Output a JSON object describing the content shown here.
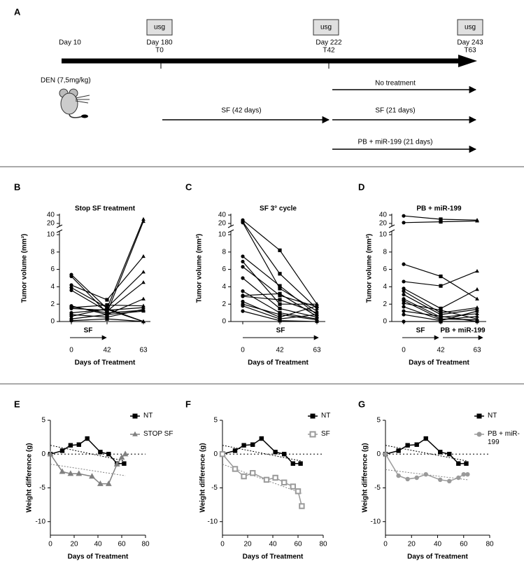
{
  "diagram": {
    "panel": "A",
    "imaging": [
      "usg",
      "usg",
      "usg"
    ],
    "timeline": [
      {
        "day": "Day 10"
      },
      {
        "day": "Day 180",
        "time": "T0"
      },
      {
        "day": "Day 222",
        "time": "T42"
      },
      {
        "day": "Day 243",
        "time": "T63"
      }
    ],
    "induction": "DEN (7,5mg/kg)",
    "arms": [
      "SF (42 days)",
      "No treatment",
      "SF (21 days)",
      "PB + miR-199 (21 days)"
    ]
  },
  "chart_data": [
    {
      "panel": "B",
      "type": "line",
      "title": "Stop SF treatment",
      "xlabel": "Days of Treatment",
      "ylabel": "Tumor volume (mm³)",
      "categories": [
        "0",
        "42",
        "63"
      ],
      "ylim": [
        0,
        40
      ],
      "yticks": [
        0,
        2,
        4,
        6,
        8,
        10,
        20,
        40
      ],
      "axis_break": [
        10,
        20
      ],
      "color": "#000000",
      "markers": [
        "circle",
        "square",
        "triangle"
      ],
      "annotations": [
        "SF"
      ],
      "series": [
        {
          "values": [
            5.4,
            1.5,
            30
          ]
        },
        {
          "values": [
            5.2,
            1.0,
            25
          ]
        },
        {
          "values": [
            4.2,
            2.5,
            7.5
          ]
        },
        {
          "values": [
            3.9,
            1.6,
            5.7
          ]
        },
        {
          "values": [
            3.6,
            1.2,
            4.5
          ]
        },
        {
          "values": [
            1.8,
            0.8,
            2.6
          ]
        },
        {
          "values": [
            1.6,
            1.9,
            1.8
          ]
        },
        {
          "values": [
            1.5,
            1.3,
            1.6
          ]
        },
        {
          "values": [
            0.8,
            0.5,
            1.4
          ]
        },
        {
          "values": [
            0.6,
            1.5,
            0
          ]
        },
        {
          "values": [
            0.3,
            0.8,
            1.2
          ]
        },
        {
          "values": [
            1.0,
            1.4,
            0
          ]
        },
        {
          "values": [
            1.7,
            1.0,
            1.3
          ]
        },
        {
          "values": [
            0.1,
            0.3,
            0
          ]
        }
      ]
    },
    {
      "panel": "C",
      "type": "line",
      "title": "SF 3° cycle",
      "xlabel": "Days of Treatment",
      "ylabel": "Tumor volume (mm³)",
      "categories": [
        "0",
        "42",
        "63"
      ],
      "ylim": [
        0,
        40
      ],
      "yticks": [
        0,
        2,
        4,
        6,
        8,
        10,
        20,
        40
      ],
      "axis_break": [
        10,
        20
      ],
      "color": "#000000",
      "markers": [
        "circle",
        "square",
        "triangle"
      ],
      "annotations": [
        "SF"
      ],
      "series": [
        {
          "values": [
            28,
            8.2,
            2.0
          ]
        },
        {
          "values": [
            24,
            5.5,
            1.5
          ]
        },
        {
          "values": [
            22,
            3.8,
            1.2
          ]
        },
        {
          "values": [
            7.5,
            4.1,
            0.8
          ]
        },
        {
          "values": [
            6.9,
            2.0,
            2.0
          ]
        },
        {
          "values": [
            6.3,
            3.0,
            1.7
          ]
        },
        {
          "values": [
            5.0,
            1.5,
            0.5
          ]
        },
        {
          "values": [
            3.5,
            1.0,
            0.3
          ]
        },
        {
          "values": [
            2.9,
            2.5,
            1.0
          ]
        },
        {
          "values": [
            2.3,
            0.5,
            1.8
          ]
        },
        {
          "values": [
            2.0,
            0.8,
            0.2
          ]
        },
        {
          "values": [
            1.8,
            0.3,
            0.8
          ]
        },
        {
          "values": [
            1.2,
            0.1,
            0
          ]
        },
        {
          "values": [
            3.0,
            3.2,
            0.6
          ]
        }
      ]
    },
    {
      "panel": "D",
      "type": "line",
      "title": "PB + miR-199",
      "xlabel": "Days of Treatment",
      "ylabel": "Tumor volume (mm³)",
      "categories": [
        "0",
        "42",
        "63"
      ],
      "ylim": [
        0,
        40
      ],
      "yticks": [
        0,
        2,
        4,
        6,
        8,
        10,
        20,
        40
      ],
      "axis_break": [
        10,
        20
      ],
      "color": "#000000",
      "markers": [
        "circle",
        "square",
        "triangle"
      ],
      "annotations": [
        "SF",
        "PB + miR-199"
      ],
      "series": [
        {
          "values": [
            38,
            30,
            28
          ]
        },
        {
          "values": [
            22,
            24,
            26
          ]
        },
        {
          "values": [
            6.6,
            5.2,
            2.6
          ]
        },
        {
          "values": [
            4.6,
            4.1,
            5.8
          ]
        },
        {
          "values": [
            3.8,
            1.5,
            3.7
          ]
        },
        {
          "values": [
            3.5,
            1.0,
            1.6
          ]
        },
        {
          "values": [
            3.1,
            0.8,
            1.4
          ]
        },
        {
          "values": [
            2.6,
            0.5,
            0.9
          ]
        },
        {
          "values": [
            2.1,
            1.3,
            0.3
          ]
        },
        {
          "values": [
            1.7,
            0.2,
            0.6
          ]
        },
        {
          "values": [
            1.2,
            0.6,
            0
          ]
        },
        {
          "values": [
            0.8,
            0.1,
            1.2
          ]
        },
        {
          "values": [
            2.4,
            0.3,
            0.2
          ]
        },
        {
          "values": [
            0,
            0,
            0
          ]
        }
      ]
    },
    {
      "panel": "E",
      "type": "line",
      "xlabel": "Days of Treatment",
      "ylabel": "Weight difference (g)",
      "xlim": [
        0,
        80
      ],
      "xticks": [
        0,
        20,
        40,
        60,
        80
      ],
      "ylim": [
        -12,
        5
      ],
      "yticks": [
        5,
        0,
        -5,
        -10
      ],
      "zero_line": true,
      "legend": "upper right",
      "series": [
        {
          "name": "NT",
          "color": "#000000",
          "marker": "square",
          "x": [
            0,
            10,
            17,
            24,
            31,
            42,
            49,
            56,
            62
          ],
          "values": [
            0,
            0.5,
            1.3,
            1.4,
            2.3,
            0.3,
            0,
            -1.4,
            -1.4
          ]
        },
        {
          "name": "STOP SF",
          "color": "#808080",
          "marker": "triangle",
          "x": [
            0,
            10,
            17,
            24,
            35,
            42,
            49,
            56,
            60,
            63
          ],
          "values": [
            0,
            -2.6,
            -2.9,
            -2.9,
            -3.3,
            -4.4,
            -4.4,
            -1.5,
            -0.5,
            0
          ]
        }
      ],
      "trends": [
        {
          "color": "#000000",
          "x": [
            0,
            62
          ],
          "values": [
            1.3,
            -1.0
          ]
        },
        {
          "color": "#808080",
          "x": [
            0,
            63
          ],
          "values": [
            -1.5,
            -3.2
          ]
        }
      ]
    },
    {
      "panel": "F",
      "type": "line",
      "xlabel": "Days of Treatment",
      "ylabel": "Weight difference (g)",
      "xlim": [
        0,
        80
      ],
      "xticks": [
        0,
        20,
        40,
        60,
        80
      ],
      "ylim": [
        -12,
        5
      ],
      "yticks": [
        5,
        0,
        -5,
        -10
      ],
      "zero_line": true,
      "legend": "upper right",
      "series": [
        {
          "name": "NT",
          "color": "#000000",
          "marker": "square",
          "x": [
            0,
            10,
            17,
            24,
            31,
            42,
            49,
            56,
            62
          ],
          "values": [
            0,
            0.5,
            1.3,
            1.4,
            2.3,
            0.3,
            0,
            -1.4,
            -1.4
          ]
        },
        {
          "name": "SF",
          "color": "#9a9a9a",
          "marker": "square-open",
          "x": [
            0,
            10,
            17,
            24,
            35,
            42,
            49,
            56,
            60,
            63
          ],
          "values": [
            0,
            -2.2,
            -3.3,
            -2.8,
            -3.8,
            -3.5,
            -4.2,
            -4.8,
            -5.5,
            -7.7
          ]
        }
      ],
      "trends": [
        {
          "color": "#000000",
          "x": [
            0,
            62
          ],
          "values": [
            1.3,
            -1.0
          ]
        },
        {
          "color": "#808080",
          "x": [
            0,
            63
          ],
          "values": [
            -1.5,
            -5.8
          ]
        }
      ]
    },
    {
      "panel": "G",
      "type": "line",
      "xlabel": "Days of Treatment",
      "ylabel": "Weight difference (g)",
      "xlim": [
        0,
        80
      ],
      "xticks": [
        0,
        20,
        40,
        60,
        80
      ],
      "ylim": [
        -12,
        5
      ],
      "yticks": [
        5,
        0,
        -5,
        -10
      ],
      "zero_line": true,
      "legend": "upper right",
      "series": [
        {
          "name": "NT",
          "color": "#000000",
          "marker": "square",
          "x": [
            0,
            10,
            17,
            24,
            31,
            42,
            49,
            56,
            62
          ],
          "values": [
            0,
            0.5,
            1.3,
            1.4,
            2.3,
            0.3,
            0,
            -1.4,
            -1.4
          ]
        },
        {
          "name": "PB + miR-199",
          "color": "#9a9a9a",
          "marker": "circle",
          "x": [
            0,
            10,
            17,
            24,
            31,
            42,
            49,
            56,
            60,
            63
          ],
          "values": [
            0,
            -3.2,
            -3.7,
            -3.5,
            -3.0,
            -3.8,
            -4.0,
            -3.5,
            -3.0,
            -3.0
          ]
        }
      ],
      "trends": [
        {
          "color": "#000000",
          "x": [
            0,
            62
          ],
          "values": [
            1.3,
            -1.0
          ]
        },
        {
          "color": "#808080",
          "x": [
            0,
            63
          ],
          "values": [
            -2.3,
            -3.8
          ]
        }
      ]
    }
  ]
}
